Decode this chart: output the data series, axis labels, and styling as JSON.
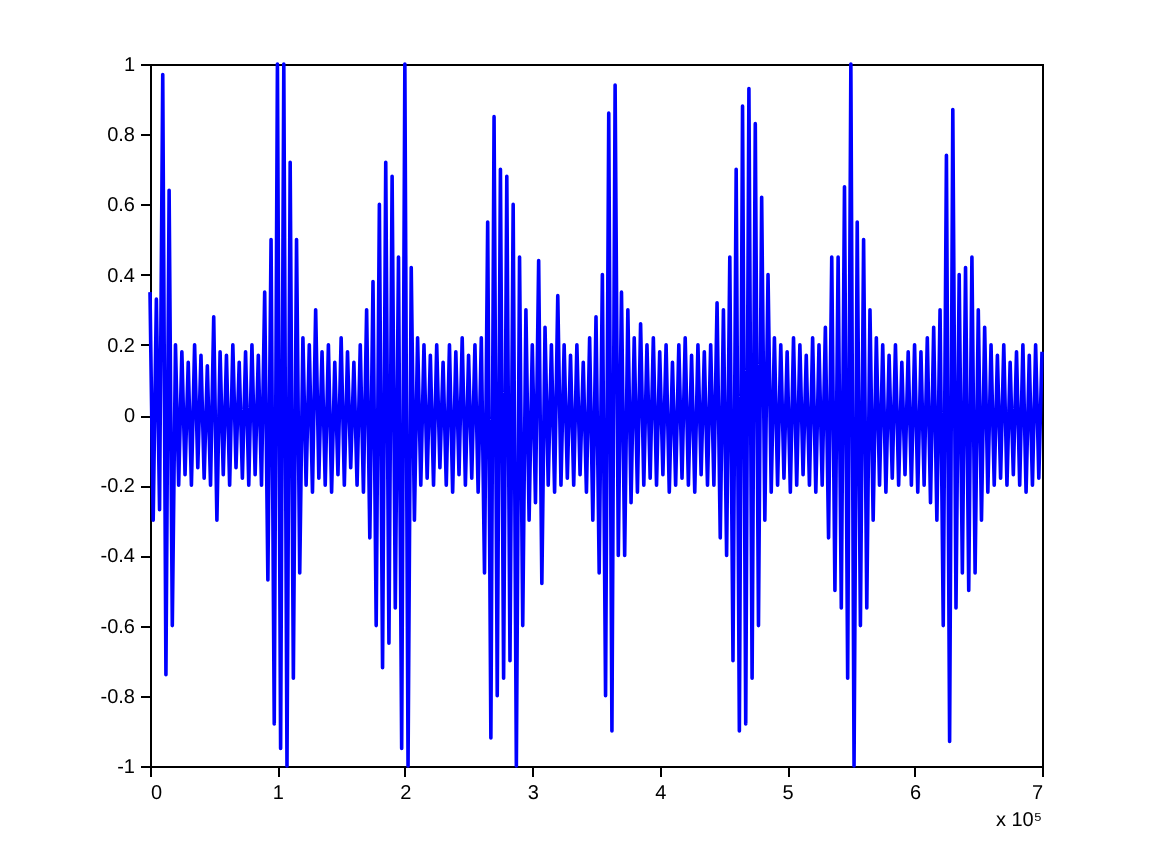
{
  "chart_data": {
    "type": "line",
    "x": [
      0,
      0.025,
      0.05,
      0.075,
      0.1,
      0.125,
      0.15,
      0.175,
      0.2,
      0.225,
      0.25,
      0.275,
      0.3,
      0.325,
      0.35,
      0.375,
      0.4,
      0.425,
      0.45,
      0.475,
      0.5,
      0.525,
      0.55,
      0.575,
      0.6,
      0.625,
      0.65,
      0.675,
      0.7,
      0.725,
      0.75,
      0.775,
      0.8,
      0.825,
      0.85,
      0.875,
      0.9,
      0.925,
      0.95,
      0.975,
      1,
      1.025,
      1.05,
      1.075,
      1.1,
      1.125,
      1.15,
      1.175,
      1.2,
      1.225,
      1.25,
      1.275,
      1.3,
      1.325,
      1.35,
      1.375,
      1.4,
      1.425,
      1.45,
      1.475,
      1.5,
      1.525,
      1.55,
      1.575,
      1.6,
      1.625,
      1.65,
      1.675,
      1.7,
      1.725,
      1.75,
      1.775,
      1.8,
      1.825,
      1.85,
      1.875,
      1.9,
      1.925,
      1.95,
      1.975,
      2,
      2.025,
      2.05,
      2.075,
      2.1,
      2.125,
      2.15,
      2.175,
      2.2,
      2.225,
      2.25,
      2.275,
      2.3,
      2.325,
      2.35,
      2.375,
      2.4,
      2.425,
      2.45,
      2.475,
      2.5,
      2.525,
      2.55,
      2.575,
      2.6,
      2.625,
      2.65,
      2.675,
      2.7,
      2.725,
      2.75,
      2.775,
      2.8,
      2.825,
      2.85,
      2.875,
      2.9,
      2.925,
      2.95,
      2.975,
      3,
      3.025,
      3.05,
      3.075,
      3.1,
      3.125,
      3.15,
      3.175,
      3.2,
      3.225,
      3.25,
      3.275,
      3.3,
      3.325,
      3.35,
      3.375,
      3.4,
      3.425,
      3.45,
      3.475,
      3.5,
      3.525,
      3.55,
      3.575,
      3.6,
      3.625,
      3.65,
      3.675,
      3.7,
      3.725,
      3.75,
      3.775,
      3.8,
      3.825,
      3.85,
      3.875,
      3.9,
      3.925,
      3.95,
      3.975,
      4,
      4.025,
      4.05,
      4.075,
      4.1,
      4.125,
      4.15,
      4.175,
      4.2,
      4.225,
      4.25,
      4.275,
      4.3,
      4.325,
      4.35,
      4.375,
      4.4,
      4.425,
      4.45,
      4.475,
      4.5,
      4.525,
      4.55,
      4.575,
      4.6,
      4.625,
      4.65,
      4.675,
      4.7,
      4.725,
      4.75,
      4.775,
      4.8,
      4.825,
      4.85,
      4.875,
      4.9,
      4.925,
      4.95,
      4.975,
      5,
      5.025,
      5.05,
      5.075,
      5.1,
      5.125,
      5.15,
      5.175,
      5.2,
      5.225,
      5.25,
      5.275,
      5.3,
      5.325,
      5.35,
      5.375,
      5.4,
      5.425,
      5.45,
      5.475,
      5.5,
      5.525,
      5.55,
      5.575,
      5.6,
      5.625,
      5.65,
      5.675,
      5.7,
      5.725,
      5.75,
      5.775,
      5.8,
      5.825,
      5.85,
      5.875,
      5.9,
      5.925,
      5.95,
      5.975,
      6,
      6.025,
      6.05,
      6.075,
      6.1,
      6.125,
      6.15,
      6.175,
      6.2,
      6.225,
      6.25,
      6.275,
      6.3,
      6.325,
      6.35,
      6.375,
      6.4,
      6.425,
      6.45,
      6.475,
      6.5,
      6.525,
      6.55,
      6.575,
      6.6,
      6.625,
      6.65,
      6.675,
      6.7,
      6.725,
      6.75,
      6.775,
      6.8,
      6.825,
      6.85,
      6.875,
      6.9,
      6.925,
      6.95,
      6.975,
      7
    ],
    "series": [
      {
        "color": "#0000ff",
        "values": [
          0.35,
          -0.3,
          0.33,
          -0.27,
          0.97,
          -0.74,
          0.64,
          -0.6,
          0.2,
          -0.2,
          0.18,
          -0.17,
          0.15,
          -0.2,
          0.2,
          -0.15,
          0.17,
          -0.18,
          0.14,
          -0.2,
          0.28,
          -0.3,
          0.18,
          -0.17,
          0.17,
          -0.2,
          0.2,
          -0.15,
          0.15,
          -0.18,
          0.18,
          -0.2,
          0.2,
          -0.17,
          0.17,
          -0.2,
          0.35,
          -0.47,
          0.5,
          -0.88,
          1.0,
          -0.95,
          1.0,
          -1.0,
          0.72,
          -0.75,
          0.5,
          -0.45,
          0.22,
          -0.2,
          0.2,
          -0.22,
          0.3,
          -0.18,
          0.18,
          -0.2,
          0.2,
          -0.22,
          0.15,
          -0.17,
          0.22,
          -0.2,
          0.18,
          -0.15,
          0.15,
          -0.2,
          0.2,
          -0.22,
          0.3,
          -0.35,
          0.38,
          -0.6,
          0.6,
          -0.72,
          0.72,
          -0.65,
          0.68,
          -0.55,
          0.45,
          -0.95,
          1.0,
          -1.0,
          0.42,
          -0.3,
          0.22,
          -0.2,
          0.2,
          -0.18,
          0.17,
          -0.2,
          0.2,
          -0.15,
          0.15,
          -0.2,
          0.2,
          -0.22,
          0.18,
          -0.17,
          0.22,
          -0.2,
          0.17,
          -0.18,
          0.2,
          -0.22,
          0.22,
          -0.45,
          0.55,
          -0.92,
          0.85,
          -0.8,
          0.7,
          -0.75,
          0.68,
          -0.7,
          0.6,
          -1.0,
          0.45,
          -0.6,
          0.3,
          -0.3,
          0.2,
          -0.25,
          0.44,
          -0.48,
          0.25,
          -0.2,
          0.2,
          -0.22,
          0.34,
          -0.2,
          0.2,
          -0.18,
          0.17,
          -0.2,
          0.2,
          -0.17,
          0.15,
          -0.22,
          0.22,
          -0.3,
          0.28,
          -0.45,
          0.4,
          -0.8,
          0.86,
          -0.9,
          0.94,
          -0.4,
          0.35,
          -0.4,
          0.3,
          -0.25,
          0.22,
          -0.22,
          0.26,
          -0.2,
          0.2,
          -0.18,
          0.22,
          -0.2,
          0.18,
          -0.17,
          0.2,
          -0.22,
          0.15,
          -0.2,
          0.2,
          -0.18,
          0.22,
          -0.2,
          0.17,
          -0.22,
          0.2,
          -0.17,
          0.18,
          -0.2,
          0.2,
          -0.2,
          0.32,
          -0.35,
          0.3,
          -0.4,
          0.45,
          -0.7,
          0.7,
          -0.9,
          0.88,
          -0.88,
          0.93,
          -0.75,
          0.83,
          -0.6,
          0.62,
          -0.3,
          0.4,
          -0.22,
          0.22,
          -0.2,
          0.2,
          -0.18,
          0.18,
          -0.22,
          0.22,
          -0.2,
          0.2,
          -0.17,
          0.17,
          -0.2,
          0.22,
          -0.22,
          0.2,
          -0.2,
          0.25,
          -0.35,
          0.45,
          -0.5,
          0.45,
          -0.55,
          0.65,
          -0.75,
          1.0,
          -1.0,
          0.55,
          -0.6,
          0.5,
          -0.55,
          0.3,
          -0.3,
          0.22,
          -0.2,
          0.2,
          -0.22,
          0.17,
          -0.18,
          0.2,
          -0.2,
          0.15,
          -0.17,
          0.18,
          -0.2,
          0.2,
          -0.22,
          0.18,
          -0.2,
          0.22,
          -0.25,
          0.25,
          -0.3,
          0.3,
          -0.6,
          0.74,
          -0.93,
          0.87,
          -0.55,
          0.4,
          -0.45,
          0.42,
          -0.5,
          0.45,
          -0.45,
          0.3,
          -0.3,
          0.25,
          -0.22,
          0.2,
          -0.2,
          0.17,
          -0.18,
          0.2,
          -0.2,
          0.15,
          -0.17,
          0.18,
          -0.2,
          0.2,
          -0.22,
          0.17,
          -0.2,
          0.2,
          -0.18,
          0.18
        ]
      }
    ],
    "xlim": [
      0,
      7
    ],
    "xticks": [
      0,
      1,
      2,
      3,
      4,
      5,
      6,
      7
    ],
    "ylim": [
      -1,
      1
    ],
    "yticks": [
      -1,
      -0.8,
      -0.6,
      -0.4,
      -0.2,
      0,
      0.2,
      0.4,
      0.6,
      0.8,
      1
    ],
    "line_style": "solid",
    "annotations": [
      "x 10⁵"
    ]
  }
}
